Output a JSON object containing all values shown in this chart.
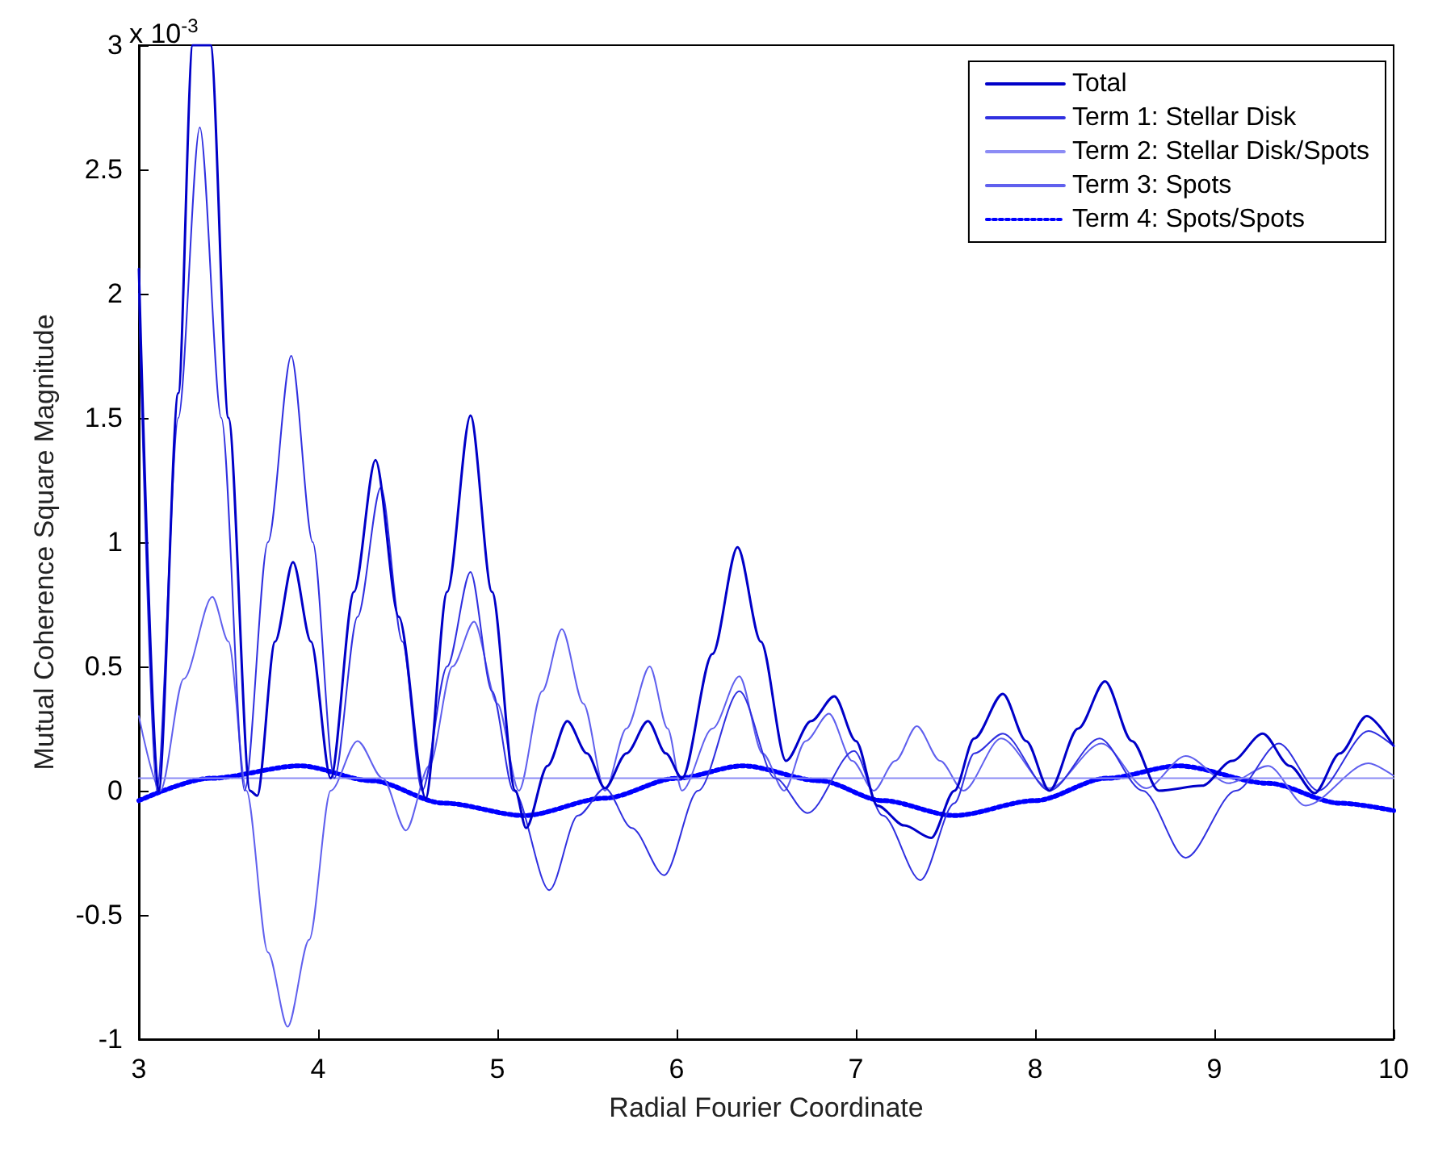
{
  "chart_data": {
    "type": "line",
    "xlabel": "Radial Fourier Coordinate",
    "ylabel": "Mutual Coherence Square Magnitude",
    "annotations": [
      "x 10$^{-3}$"
    ],
    "xlim": [
      3,
      10
    ],
    "xticks": [
      3,
      4,
      5,
      6,
      7,
      8,
      9,
      10
    ],
    "ylim": [
      -1,
      3
    ],
    "yticks": [
      -1,
      -0.5,
      0,
      0.5,
      1,
      1.5,
      2,
      2.5,
      3
    ],
    "grid": false,
    "legend": "top right",
    "marker": "none",
    "series": [
      {
        "name": "Total",
        "color": "#0000c8",
        "x": [
          3.0,
          3.11,
          3.22,
          3.3,
          3.4,
          3.5,
          3.62,
          3.66,
          3.76,
          3.86,
          3.96,
          4.07,
          4.2,
          4.32,
          4.45,
          4.6,
          4.72,
          4.85,
          4.97,
          5.1,
          5.16,
          5.28,
          5.39,
          5.5,
          5.6,
          5.72,
          5.84,
          5.94,
          6.03,
          6.2,
          6.34,
          6.47,
          6.61,
          6.75,
          6.88,
          7.0,
          7.12,
          7.27,
          7.42,
          7.55,
          7.66,
          7.82,
          7.95,
          8.08,
          8.24,
          8.39,
          8.54,
          8.69,
          8.93,
          9.1,
          9.27,
          9.42,
          9.56,
          9.7,
          9.85,
          10
        ],
        "values": [
          2.1,
          0.0,
          1.6,
          3.0,
          3.0,
          1.5,
          0.0,
          -0.02,
          0.6,
          0.92,
          0.6,
          0.05,
          0.8,
          1.33,
          0.7,
          -0.03,
          0.8,
          1.51,
          0.8,
          0.0,
          -0.15,
          0.1,
          0.28,
          0.15,
          0.01,
          0.15,
          0.28,
          0.15,
          0.05,
          0.55,
          0.98,
          0.6,
          0.12,
          0.28,
          0.38,
          0.2,
          -0.06,
          -0.14,
          -0.19,
          0.0,
          0.21,
          0.39,
          0.2,
          0.0,
          0.25,
          0.44,
          0.2,
          0.0,
          0.02,
          0.12,
          0.23,
          0.1,
          -0.01,
          0.15,
          0.3,
          0.18
        ]
      },
      {
        "name": "Term 1: Stellar Disk",
        "color": "#3030e0",
        "x": [
          3.0,
          3.1,
          3.22,
          3.34,
          3.46,
          3.59,
          3.72,
          3.85,
          3.97,
          4.09,
          4.22,
          4.35,
          4.47,
          4.58,
          4.72,
          4.85,
          4.97,
          5.09,
          5.29,
          5.45,
          5.6,
          5.75,
          5.93,
          6.12,
          6.35,
          6.55,
          6.73,
          6.99,
          7.15,
          7.36,
          7.55,
          7.66,
          7.82,
          8.08,
          8.36,
          8.6,
          8.84,
          9.12,
          9.36,
          9.58,
          9.86,
          10
        ],
        "values": [
          2.0,
          0.0,
          1.5,
          2.67,
          1.5,
          0.0,
          1.0,
          1.75,
          1.0,
          0.05,
          0.7,
          1.22,
          0.6,
          0.0,
          0.5,
          0.88,
          0.4,
          0.0,
          -0.4,
          -0.1,
          0.01,
          -0.15,
          -0.34,
          0.0,
          0.4,
          0.05,
          -0.09,
          0.16,
          -0.1,
          -0.36,
          -0.05,
          0.15,
          0.23,
          0.0,
          0.21,
          0.0,
          -0.27,
          0.0,
          0.19,
          0.0,
          0.24,
          0.18
        ]
      },
      {
        "name": "Term 2: Stellar Disk/Spots",
        "color": "#8c8cf5",
        "x": [
          3,
          10
        ],
        "values": [
          0.05,
          0.05
        ]
      },
      {
        "name": "Term 3: Spots",
        "color": "#6060ee",
        "x": [
          3.0,
          3.12,
          3.25,
          3.41,
          3.5,
          3.6,
          3.72,
          3.83,
          3.95,
          4.07,
          4.22,
          4.36,
          4.49,
          4.62,
          4.75,
          4.87,
          5.0,
          5.12,
          5.25,
          5.36,
          5.48,
          5.6,
          5.72,
          5.85,
          5.95,
          6.03,
          6.2,
          6.35,
          6.48,
          6.6,
          6.72,
          6.85,
          6.98,
          7.1,
          7.22,
          7.34,
          7.47,
          7.6,
          7.81,
          8.08,
          8.37,
          8.62,
          8.84,
          9.08,
          9.3,
          9.51,
          9.86,
          10
        ],
        "values": [
          0.3,
          0.0,
          0.45,
          0.78,
          0.6,
          0.0,
          -0.65,
          -0.95,
          -0.6,
          0.0,
          0.2,
          0.05,
          -0.16,
          0.1,
          0.5,
          0.68,
          0.35,
          0.0,
          0.4,
          0.65,
          0.35,
          0.0,
          0.25,
          0.5,
          0.25,
          0.0,
          0.25,
          0.46,
          0.15,
          0.0,
          0.2,
          0.31,
          0.12,
          0.0,
          0.12,
          0.26,
          0.12,
          0.0,
          0.21,
          0.01,
          0.19,
          0.01,
          0.14,
          0.03,
          0.1,
          -0.06,
          0.11,
          0.06
        ]
      },
      {
        "name": "Term 4: Spots/Spots",
        "color": "#0000ff",
        "line_style": "dotted",
        "x": [
          3.0,
          3.4,
          3.9,
          4.3,
          4.7,
          5.15,
          5.6,
          6.0,
          6.37,
          6.8,
          7.15,
          7.55,
          8.0,
          8.4,
          8.8,
          9.3,
          9.7,
          10
        ],
        "values": [
          -0.04,
          0.05,
          0.1,
          0.04,
          -0.05,
          -0.1,
          -0.03,
          0.05,
          0.1,
          0.04,
          -0.04,
          -0.1,
          -0.04,
          0.05,
          0.1,
          0.03,
          -0.05,
          -0.08
        ]
      }
    ]
  }
}
